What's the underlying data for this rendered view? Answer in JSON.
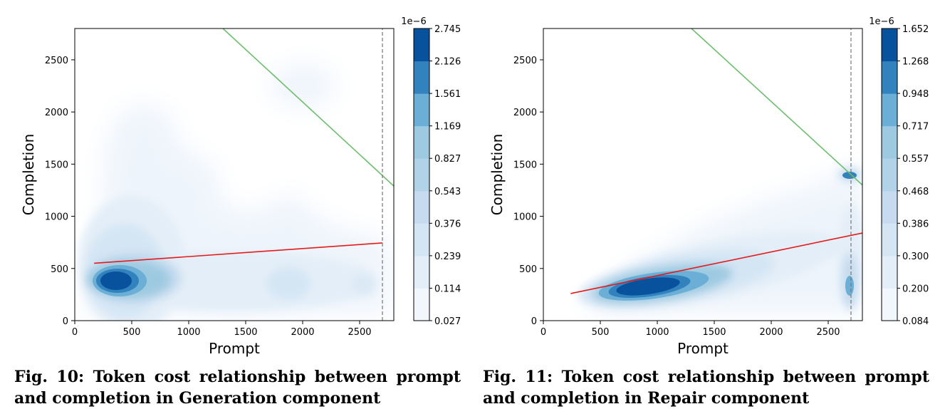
{
  "chart_data": [
    {
      "type": "heatmap",
      "subtype": "kde-contour",
      "xlabel": "Prompt",
      "ylabel": "Completion",
      "xlim": [
        0,
        2800
      ],
      "ylim": [
        0,
        2800
      ],
      "xticks": [
        0,
        500,
        1000,
        1500,
        2000,
        2500
      ],
      "yticks": [
        0,
        500,
        1000,
        1500,
        2000,
        2500
      ],
      "colorbar": {
        "multiplier": "1e−6",
        "levels": [
          "0.027",
          "0.114",
          "0.239",
          "0.376",
          "0.543",
          "0.827",
          "1.169",
          "1.561",
          "2.126",
          "2.745"
        ]
      },
      "density_peaks": [
        {
          "x": 370,
          "y": 370,
          "note": "highest density core"
        },
        {
          "x": 1900,
          "y": 330
        },
        {
          "x": 2520,
          "y": 320
        }
      ],
      "lines": [
        {
          "color": "#e41a1c",
          "style": "solid",
          "x": [
            170,
            2700
          ],
          "y": [
            550,
            745
          ]
        },
        {
          "color": "#6dbd6d",
          "style": "solid",
          "x": [
            1300,
            2800
          ],
          "y": [
            2800,
            1290
          ]
        },
        {
          "color": "#777777",
          "style": "dashed",
          "x": [
            2700,
            2700
          ],
          "y": [
            0,
            2800
          ]
        }
      ],
      "caption": {
        "label": "Fig. 10:",
        "text": "Token cost relationship between prompt and completion in Generation component"
      }
    },
    {
      "type": "heatmap",
      "subtype": "kde-contour",
      "xlabel": "Prompt",
      "ylabel": "Completion",
      "xlim": [
        0,
        2800
      ],
      "ylim": [
        0,
        2800
      ],
      "xticks": [
        0,
        500,
        1000,
        1500,
        2000,
        2500
      ],
      "yticks": [
        0,
        500,
        1000,
        1500,
        2000,
        2500
      ],
      "colorbar": {
        "multiplier": "1e−6",
        "levels": [
          "0.084",
          "0.200",
          "0.300",
          "0.386",
          "0.468",
          "0.557",
          "0.717",
          "0.948",
          "1.268",
          "1.652"
        ]
      },
      "density_peaks": [
        {
          "x": 870,
          "y": 320,
          "note": "highest density core"
        },
        {
          "x": 2700,
          "y": 1390
        },
        {
          "x": 2700,
          "y": 330
        }
      ],
      "lines": [
        {
          "color": "#e41a1c",
          "style": "solid",
          "x": [
            240,
            2800
          ],
          "y": [
            260,
            840
          ]
        },
        {
          "color": "#6dbd6d",
          "style": "solid",
          "x": [
            1300,
            2800
          ],
          "y": [
            2800,
            1300
          ]
        },
        {
          "color": "#777777",
          "style": "dashed",
          "x": [
            2700,
            2700
          ],
          "y": [
            0,
            2800
          ]
        }
      ],
      "caption": {
        "label": "Fig. 11:",
        "text": "Token cost relationship between prompt and completion in Repair component"
      }
    }
  ]
}
